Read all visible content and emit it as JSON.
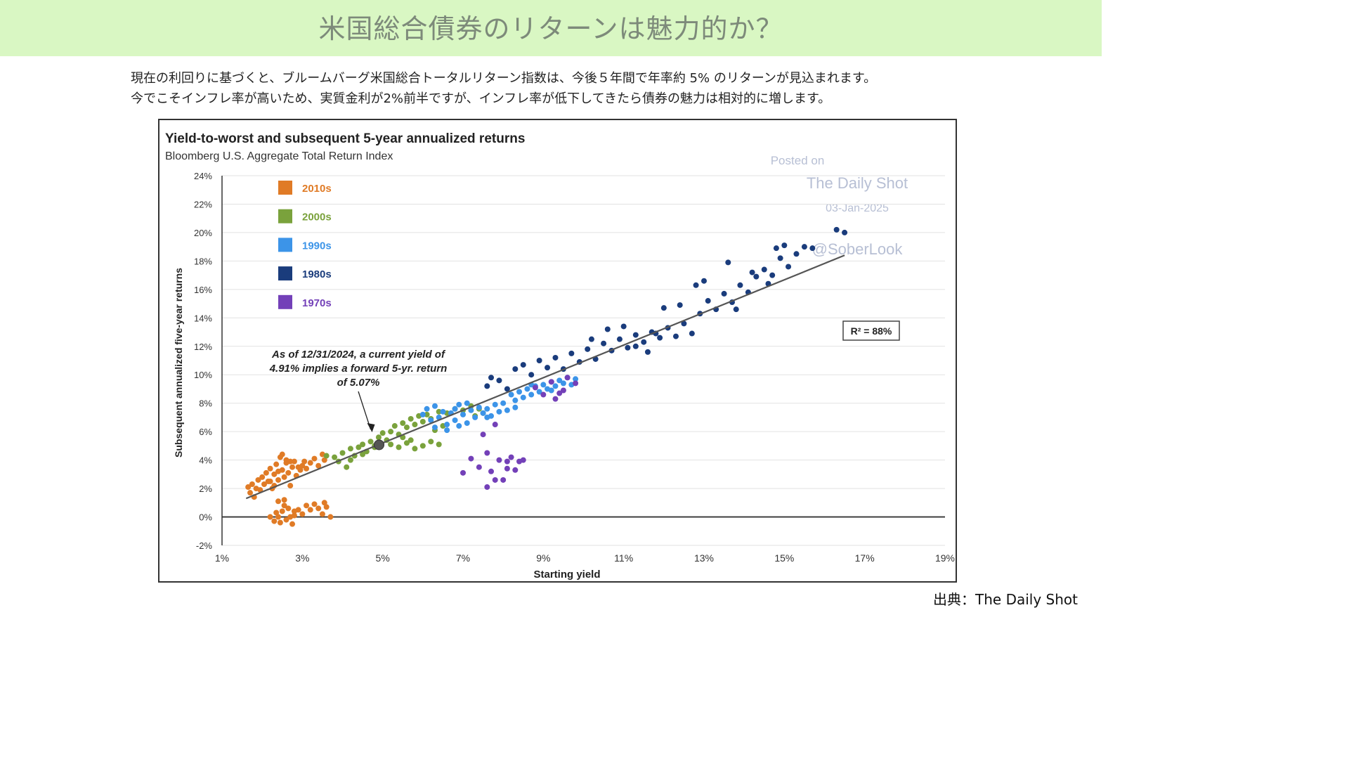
{
  "header": {
    "title": "米国総合債券のリターンは魅力的か？"
  },
  "description": {
    "line1": "現在の利回りに基づくと、ブルームバーグ米国総合トータルリターン指数は、今後５年間で年率約 5% のリターンが見込まれます。",
    "line2": "今でこそインフレ率が高いため、実質金利が2%前半ですが、インフレ率が低下してきたら債券の魅力は相対的に増します。"
  },
  "source": "出典：The Daily Shot",
  "chart_data": {
    "type": "scatter",
    "title": "Yield-to-worst and subsequent 5-year annualized returns",
    "subtitle": "Bloomberg U.S. Aggregate Total Return Index",
    "xlabel": "Starting yield",
    "ylabel": "Subsequent annualized five-year returns",
    "xlim": [
      1,
      19
    ],
    "ylim": [
      -2,
      24
    ],
    "x_ticks": [
      "1%",
      "3%",
      "5%",
      "7%",
      "9%",
      "11%",
      "13%",
      "15%",
      "17%",
      "19%"
    ],
    "y_ticks": [
      "-2%",
      "0%",
      "2%",
      "4%",
      "6%",
      "8%",
      "10%",
      "12%",
      "14%",
      "16%",
      "18%",
      "20%",
      "22%",
      "24%"
    ],
    "legend_position": "top-left",
    "grid": true,
    "annotation": [
      "As of 12/31/2024, a current yield of",
      "4.91% implies a forward 5-yr. return",
      "of 5.07%"
    ],
    "r2_label": "R² = 88%",
    "watermark": [
      "Posted on",
      "The Daily Shot",
      "03-Jan-2025",
      "@SoberLook"
    ],
    "current_point": {
      "x": 4.91,
      "y": 5.07
    },
    "trendline": {
      "x": [
        1.6,
        16.5
      ],
      "y": [
        1.3,
        18.4
      ]
    },
    "series": [
      {
        "name": "2010s",
        "color": "#e07b26",
        "points": [
          [
            1.65,
            2.1
          ],
          [
            1.7,
            1.7
          ],
          [
            1.75,
            2.3
          ],
          [
            1.8,
            1.4
          ],
          [
            1.85,
            2.0
          ],
          [
            1.9,
            2.6
          ],
          [
            1.95,
            1.9
          ],
          [
            2.0,
            2.8
          ],
          [
            2.05,
            2.3
          ],
          [
            2.1,
            3.1
          ],
          [
            2.15,
            2.5
          ],
          [
            2.2,
            3.4
          ],
          [
            2.25,
            2.0
          ],
          [
            2.3,
            3.0
          ],
          [
            2.35,
            3.7
          ],
          [
            2.4,
            2.6
          ],
          [
            2.45,
            4.2
          ],
          [
            2.5,
            3.3
          ],
          [
            2.55,
            2.8
          ],
          [
            2.6,
            3.8
          ],
          [
            2.65,
            3.1
          ],
          [
            2.7,
            2.2
          ],
          [
            2.75,
            3.5
          ],
          [
            2.8,
            3.9
          ],
          [
            2.85,
            2.9
          ],
          [
            2.9,
            3.5
          ],
          [
            2.95,
            3.3
          ],
          [
            3.0,
            3.6
          ],
          [
            3.05,
            3.9
          ],
          [
            3.1,
            3.4
          ],
          [
            3.2,
            3.8
          ],
          [
            3.3,
            4.1
          ],
          [
            3.4,
            3.6
          ],
          [
            3.5,
            4.4
          ],
          [
            3.55,
            4.0
          ],
          [
            2.2,
            2.5
          ],
          [
            2.3,
            2.2
          ],
          [
            2.4,
            3.2
          ],
          [
            2.5,
            4.4
          ],
          [
            2.6,
            4.0
          ],
          [
            2.7,
            3.9
          ],
          [
            2.2,
            0.0
          ],
          [
            2.3,
            -0.3
          ],
          [
            2.35,
            0.3
          ],
          [
            2.4,
            0.0
          ],
          [
            2.45,
            -0.4
          ],
          [
            2.5,
            0.4
          ],
          [
            2.55,
            1.2
          ],
          [
            2.6,
            -0.2
          ],
          [
            2.65,
            0.6
          ],
          [
            2.7,
            0.0
          ],
          [
            2.75,
            -0.5
          ],
          [
            2.8,
            0.1
          ],
          [
            2.9,
            0.5
          ],
          [
            3.0,
            0.2
          ],
          [
            3.1,
            0.8
          ],
          [
            3.2,
            0.5
          ],
          [
            3.3,
            0.9
          ],
          [
            3.4,
            0.6
          ],
          [
            3.5,
            0.2
          ],
          [
            3.6,
            0.7
          ],
          [
            3.7,
            0.0
          ],
          [
            3.55,
            1.0
          ],
          [
            2.8,
            0.4
          ],
          [
            2.55,
            0.8
          ],
          [
            2.4,
            1.1
          ]
        ]
      },
      {
        "name": "2000s",
        "color": "#7aa23c",
        "points": [
          [
            3.6,
            4.3
          ],
          [
            3.8,
            4.2
          ],
          [
            4.0,
            4.5
          ],
          [
            4.2,
            4.8
          ],
          [
            4.3,
            4.3
          ],
          [
            4.4,
            4.9
          ],
          [
            4.5,
            5.1
          ],
          [
            4.6,
            4.6
          ],
          [
            4.7,
            5.3
          ],
          [
            4.8,
            5.0
          ],
          [
            4.9,
            5.6
          ],
          [
            5.0,
            5.9
          ],
          [
            5.1,
            5.4
          ],
          [
            5.2,
            6.0
          ],
          [
            5.3,
            6.4
          ],
          [
            5.4,
            5.8
          ],
          [
            5.5,
            6.6
          ],
          [
            5.6,
            6.3
          ],
          [
            5.7,
            6.9
          ],
          [
            5.8,
            6.5
          ],
          [
            5.9,
            7.1
          ],
          [
            6.0,
            6.7
          ],
          [
            6.1,
            7.2
          ],
          [
            6.2,
            6.9
          ],
          [
            6.4,
            7.4
          ],
          [
            6.6,
            7.3
          ],
          [
            6.8,
            7.6
          ],
          [
            7.0,
            7.5
          ],
          [
            7.2,
            7.8
          ],
          [
            7.4,
            7.6
          ],
          [
            7.5,
            7.3
          ],
          [
            5.2,
            5.1
          ],
          [
            5.4,
            4.9
          ],
          [
            5.6,
            5.2
          ],
          [
            5.8,
            4.8
          ],
          [
            6.0,
            5.0
          ],
          [
            6.2,
            5.3
          ],
          [
            6.4,
            5.1
          ],
          [
            4.2,
            4.0
          ],
          [
            4.5,
            4.4
          ],
          [
            3.9,
            3.9
          ],
          [
            4.1,
            3.5
          ],
          [
            5.5,
            5.6
          ],
          [
            5.7,
            5.4
          ],
          [
            6.3,
            6.1
          ],
          [
            6.5,
            6.4
          ],
          [
            7.3,
            7.1
          ],
          [
            4.8,
            4.9
          ]
        ]
      },
      {
        "name": "1990s",
        "color": "#3c94e8",
        "points": [
          [
            6.0,
            7.2
          ],
          [
            6.1,
            7.6
          ],
          [
            6.2,
            6.8
          ],
          [
            6.3,
            7.8
          ],
          [
            6.4,
            7.0
          ],
          [
            6.5,
            7.4
          ],
          [
            6.6,
            6.5
          ],
          [
            6.7,
            7.3
          ],
          [
            6.8,
            6.8
          ],
          [
            6.9,
            7.9
          ],
          [
            7.0,
            7.2
          ],
          [
            7.1,
            6.6
          ],
          [
            7.2,
            7.5
          ],
          [
            7.3,
            7.0
          ],
          [
            7.4,
            7.7
          ],
          [
            7.5,
            7.3
          ],
          [
            7.6,
            7.6
          ],
          [
            7.7,
            7.1
          ],
          [
            7.8,
            7.9
          ],
          [
            7.9,
            7.4
          ],
          [
            8.0,
            8.0
          ],
          [
            8.1,
            7.5
          ],
          [
            8.2,
            8.6
          ],
          [
            8.3,
            8.2
          ],
          [
            8.4,
            8.8
          ],
          [
            8.5,
            8.4
          ],
          [
            8.6,
            9.0
          ],
          [
            8.7,
            8.6
          ],
          [
            8.8,
            9.2
          ],
          [
            8.9,
            8.8
          ],
          [
            9.0,
            9.3
          ],
          [
            9.1,
            9.0
          ],
          [
            9.2,
            9.5
          ],
          [
            9.3,
            9.2
          ],
          [
            9.4,
            9.6
          ],
          [
            9.5,
            9.4
          ],
          [
            9.6,
            9.8
          ],
          [
            9.7,
            9.3
          ],
          [
            9.8,
            9.7
          ],
          [
            6.3,
            6.3
          ],
          [
            6.6,
            6.1
          ],
          [
            6.9,
            6.4
          ],
          [
            7.1,
            8.0
          ],
          [
            8.3,
            7.7
          ],
          [
            8.7,
            9.3
          ],
          [
            9.2,
            8.9
          ],
          [
            6.8,
            7.6
          ],
          [
            7.6,
            7.0
          ]
        ]
      },
      {
        "name": "1980s",
        "color": "#1a3c7c",
        "points": [
          [
            7.6,
            9.2
          ],
          [
            7.7,
            9.8
          ],
          [
            7.9,
            9.6
          ],
          [
            8.1,
            9.0
          ],
          [
            8.3,
            10.4
          ],
          [
            8.5,
            10.7
          ],
          [
            8.7,
            10.0
          ],
          [
            8.9,
            11.0
          ],
          [
            9.1,
            10.5
          ],
          [
            9.3,
            11.2
          ],
          [
            9.5,
            10.4
          ],
          [
            9.7,
            11.5
          ],
          [
            9.9,
            10.9
          ],
          [
            10.1,
            11.8
          ],
          [
            10.3,
            11.1
          ],
          [
            10.5,
            12.2
          ],
          [
            10.7,
            11.7
          ],
          [
            10.9,
            12.5
          ],
          [
            11.1,
            11.9
          ],
          [
            11.3,
            12.8
          ],
          [
            11.5,
            12.3
          ],
          [
            11.7,
            13.0
          ],
          [
            11.9,
            12.6
          ],
          [
            12.1,
            13.3
          ],
          [
            12.3,
            12.7
          ],
          [
            12.5,
            13.6
          ],
          [
            12.7,
            12.9
          ],
          [
            12.9,
            14.3
          ],
          [
            13.1,
            15.2
          ],
          [
            13.3,
            14.6
          ],
          [
            13.5,
            15.7
          ],
          [
            13.7,
            15.1
          ],
          [
            13.9,
            16.3
          ],
          [
            14.1,
            15.8
          ],
          [
            14.3,
            16.9
          ],
          [
            14.5,
            17.4
          ],
          [
            14.7,
            17.0
          ],
          [
            14.9,
            18.2
          ],
          [
            15.1,
            17.6
          ],
          [
            15.3,
            18.5
          ],
          [
            15.5,
            19.0
          ],
          [
            15.7,
            18.9
          ],
          [
            16.3,
            20.2
          ],
          [
            16.5,
            20.0
          ],
          [
            10.6,
            13.2
          ],
          [
            11.0,
            13.4
          ],
          [
            11.3,
            12.0
          ],
          [
            11.6,
            11.6
          ],
          [
            12.4,
            14.9
          ],
          [
            13.0,
            16.6
          ],
          [
            13.6,
            17.9
          ],
          [
            14.2,
            17.2
          ],
          [
            14.8,
            18.9
          ],
          [
            15.0,
            19.1
          ],
          [
            12.0,
            14.7
          ],
          [
            12.8,
            16.3
          ],
          [
            13.8,
            14.6
          ],
          [
            14.6,
            16.4
          ],
          [
            11.8,
            12.9
          ],
          [
            10.2,
            12.5
          ]
        ]
      },
      {
        "name": "1970s",
        "color": "#7340b8",
        "points": [
          [
            7.5,
            5.8
          ],
          [
            7.6,
            4.5
          ],
          [
            7.7,
            3.2
          ],
          [
            7.8,
            6.5
          ],
          [
            7.9,
            4.0
          ],
          [
            8.0,
            2.6
          ],
          [
            8.1,
            3.4
          ],
          [
            8.2,
            4.2
          ],
          [
            8.3,
            3.3
          ],
          [
            8.4,
            3.9
          ],
          [
            7.4,
            3.5
          ],
          [
            7.6,
            2.1
          ],
          [
            7.8,
            2.6
          ],
          [
            8.1,
            3.9
          ],
          [
            8.5,
            4.0
          ],
          [
            7.2,
            4.1
          ],
          [
            7.0,
            3.1
          ],
          [
            9.2,
            9.5
          ],
          [
            9.4,
            8.7
          ],
          [
            9.6,
            9.8
          ],
          [
            9.3,
            8.3
          ],
          [
            9.8,
            9.4
          ],
          [
            9.0,
            8.6
          ],
          [
            8.8,
            9.1
          ],
          [
            9.5,
            8.9
          ]
        ]
      }
    ]
  }
}
